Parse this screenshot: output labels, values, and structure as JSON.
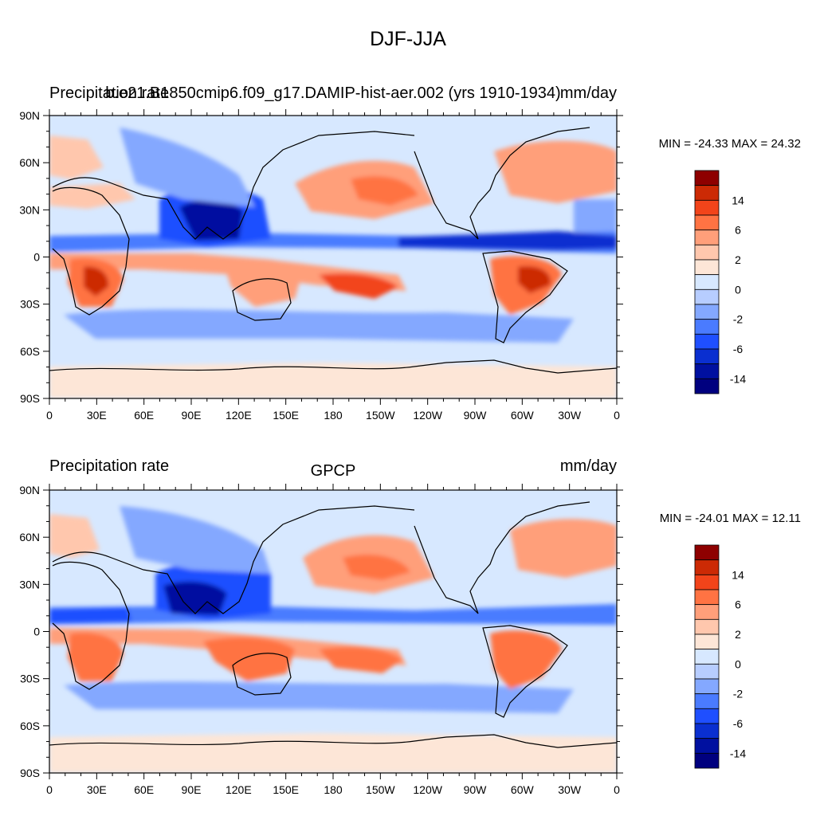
{
  "figure_title": "DJF-JJA",
  "colors": {
    "levels_fill": [
      "#00007f",
      "#0010a0",
      "#0a2fd0",
      "#1f4fff",
      "#4a7bff",
      "#84a8ff",
      "#b7cdff",
      "#d7e8ff",
      "#fde6d7",
      "#ffc7ad",
      "#ff9f7a",
      "#ff7343",
      "#f2441a",
      "#cc2a05",
      "#8e0000"
    ],
    "coast": "#000000",
    "frame": "#000000"
  },
  "axes": {
    "lon_ticks": [
      "0",
      "30E",
      "60E",
      "90E",
      "120E",
      "150E",
      "180",
      "150W",
      "120W",
      "90W",
      "60W",
      "30W",
      "0"
    ],
    "lat_ticks": [
      "90N",
      "60N",
      "30N",
      "0",
      "30S",
      "60S",
      "90S"
    ]
  },
  "colorbar": {
    "labels": [
      "14",
      "6",
      "2",
      "0",
      "-2",
      "-6",
      "-14"
    ]
  },
  "panels": [
    {
      "left_title": "Precipitation rate",
      "center_title": "b.e21.B1850cmip6.f09_g17.DAMIP-hist-aer.002 (yrs 1910-1934)",
      "right_title": "mm/day",
      "minmax": "MIN = -24.33 MAX =  24.32"
    },
    {
      "left_title": "Precipitation rate",
      "center_title": "GPCP",
      "right_title": "mm/day",
      "minmax": "MIN = -24.01 MAX =  12.11"
    }
  ]
}
